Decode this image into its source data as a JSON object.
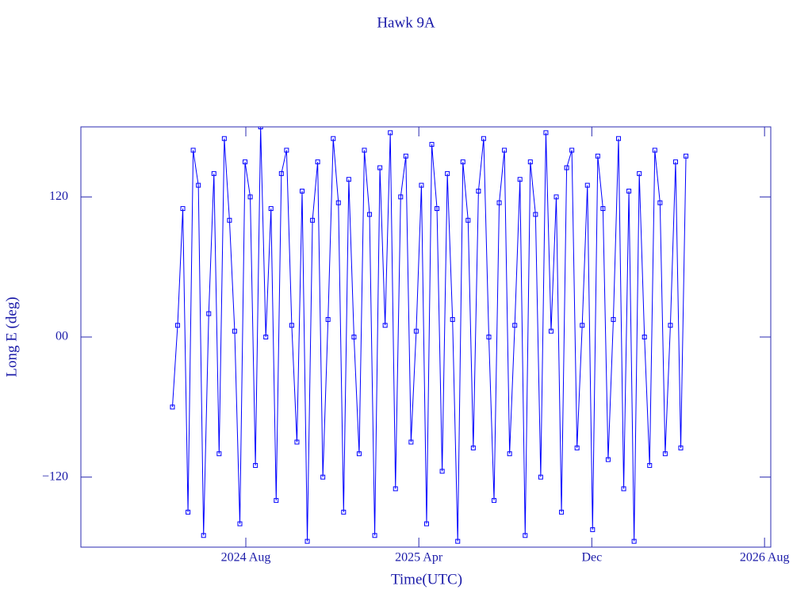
{
  "chart_data": {
    "type": "line",
    "title": "Hawk 9A",
    "x_label": "Time(UTC)",
    "y_label": "Long E (deg)",
    "xlim": [
      2023.947,
      2026.607
    ],
    "ylim": [
      -180,
      180
    ],
    "xticks": [
      {
        "value": 2024.583,
        "label": "2024 Aug"
      },
      {
        "value": 2025.25,
        "label": "2025 Apr"
      },
      {
        "value": 2025.917,
        "label": "Dec"
      },
      {
        "value": 2026.583,
        "label": "2026 Aug"
      }
    ],
    "yticks": [
      {
        "value": -120,
        "label": "−120"
      },
      {
        "value": 0,
        "label": "00"
      },
      120
    ],
    "series": [
      {
        "name": "Hawk 9A",
        "color": "#0000ff",
        "x": [
          2024.3,
          2024.32,
          2024.34,
          2024.36,
          2024.38,
          2024.4,
          2024.42,
          2024.44,
          2024.46,
          2024.48,
          2024.5,
          2024.52,
          2024.54,
          2024.56,
          2024.58,
          2024.6,
          2024.62,
          2024.64,
          2024.66,
          2024.68,
          2024.7,
          2024.72,
          2024.74,
          2024.76,
          2024.78,
          2024.8,
          2024.82,
          2024.84,
          2024.86,
          2024.88,
          2024.9,
          2024.92,
          2024.94,
          2024.96,
          2024.98,
          2025.0,
          2025.02,
          2025.04,
          2025.06,
          2025.08,
          2025.1,
          2025.12,
          2025.14,
          2025.16,
          2025.18,
          2025.2,
          2025.22,
          2025.24,
          2025.26,
          2025.28,
          2025.3,
          2025.32,
          2025.34,
          2025.36,
          2025.38,
          2025.4,
          2025.42,
          2025.44,
          2025.46,
          2025.48,
          2025.5,
          2025.52,
          2025.54,
          2025.56,
          2025.58,
          2025.6,
          2025.62,
          2025.64,
          2025.66,
          2025.68,
          2025.7,
          2025.72,
          2025.74,
          2025.76,
          2025.78,
          2025.8,
          2025.82,
          2025.84,
          2025.86,
          2025.88,
          2025.9,
          2025.92,
          2025.94,
          2025.96,
          2025.98,
          2026.0,
          2026.02,
          2026.04,
          2026.06,
          2026.08,
          2026.1,
          2026.12,
          2026.14,
          2026.16,
          2026.18,
          2026.2,
          2026.22,
          2026.24,
          2026.26,
          2026.28
        ],
        "values": [
          -60,
          10,
          110,
          -150,
          160,
          130,
          -170,
          20,
          140,
          -100,
          170,
          100,
          5,
          -160,
          150,
          120,
          -110,
          180,
          0,
          110,
          -140,
          140,
          160,
          10,
          -90,
          125,
          -175,
          100,
          150,
          -120,
          15,
          170,
          115,
          -150,
          135,
          0,
          -100,
          160,
          105,
          -170,
          145,
          10,
          175,
          -130,
          120,
          155,
          -90,
          5,
          130,
          -160,
          165,
          110,
          -115,
          140,
          15,
          -175,
          150,
          100,
          -95,
          125,
          170,
          0,
          -140,
          115,
          160,
          -100,
          10,
          135,
          -170,
          150,
          105,
          -120,
          175,
          5,
          120,
          -150,
          145,
          160,
          -95,
          10,
          130,
          -165,
          155,
          110,
          -105,
          15,
          170,
          -130,
          125,
          -175,
          140,
          0,
          -110,
          160,
          115,
          -100,
          10,
          150,
          -95,
          155
        ]
      }
    ]
  }
}
